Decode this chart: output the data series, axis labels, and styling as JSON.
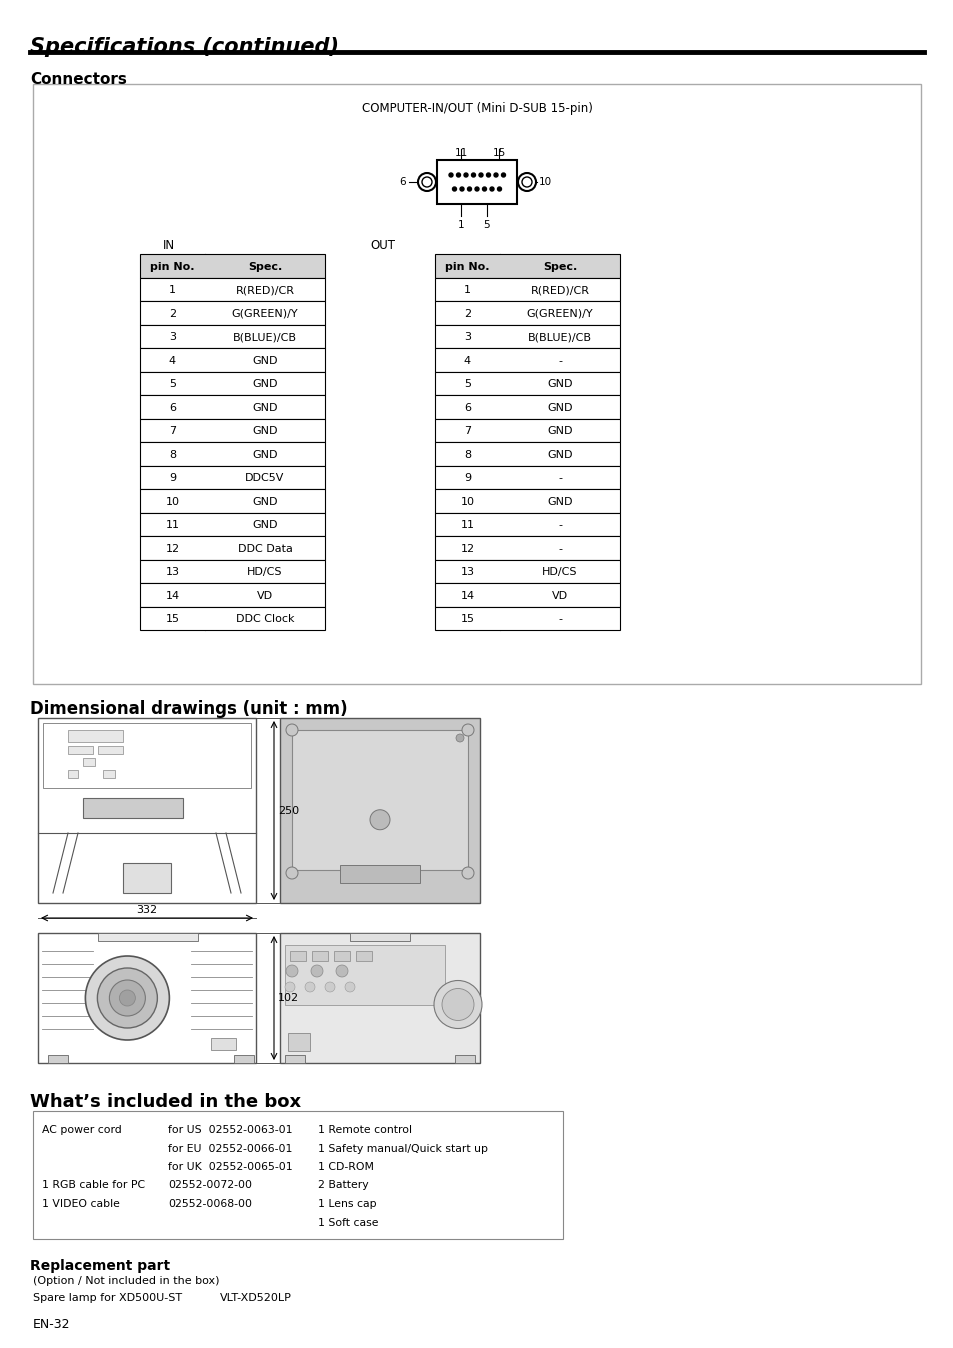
{
  "title": "Specifications (continued)",
  "connectors_title": "Connectors",
  "connector_label": "COMPUTER-IN/OUT (Mini D-SUB 15-pin)",
  "in_label": "IN",
  "out_label": "OUT",
  "in_table": {
    "headers": [
      "pin No.",
      "Spec."
    ],
    "rows": [
      [
        "1",
        "R(RED)/CR"
      ],
      [
        "2",
        "G(GREEN)/Y"
      ],
      [
        "3",
        "B(BLUE)/CB"
      ],
      [
        "4",
        "GND"
      ],
      [
        "5",
        "GND"
      ],
      [
        "6",
        "GND"
      ],
      [
        "7",
        "GND"
      ],
      [
        "8",
        "GND"
      ],
      [
        "9",
        "DDC5V"
      ],
      [
        "10",
        "GND"
      ],
      [
        "11",
        "GND"
      ],
      [
        "12",
        "DDC Data"
      ],
      [
        "13",
        "HD/CS"
      ],
      [
        "14",
        "VD"
      ],
      [
        "15",
        "DDC Clock"
      ]
    ]
  },
  "out_table": {
    "headers": [
      "pin No.",
      "Spec."
    ],
    "rows": [
      [
        "1",
        "R(RED)/CR"
      ],
      [
        "2",
        "G(GREEN)/Y"
      ],
      [
        "3",
        "B(BLUE)/CB"
      ],
      [
        "4",
        "-"
      ],
      [
        "5",
        "GND"
      ],
      [
        "6",
        "GND"
      ],
      [
        "7",
        "GND"
      ],
      [
        "8",
        "GND"
      ],
      [
        "9",
        "-"
      ],
      [
        "10",
        "GND"
      ],
      [
        "11",
        "-"
      ],
      [
        "12",
        "-"
      ],
      [
        "13",
        "HD/CS"
      ],
      [
        "14",
        "VD"
      ],
      [
        "15",
        "-"
      ]
    ]
  },
  "dimensional_title": "Dimensional drawings (unit : mm)",
  "dim_250": "250",
  "dim_332": "332",
  "dim_102": "102",
  "whats_included_title": "What’s included in the box",
  "included_lines": [
    [
      "AC power cord",
      "for US  02552-0063-01",
      "1 Remote control"
    ],
    [
      "",
      "for EU  02552-0066-01",
      "1 Safety manual/Quick start up"
    ],
    [
      "",
      "for UK  02552-0065-01",
      "1 CD-ROM"
    ],
    [
      "1 RGB cable for PC",
      "02552-0072-00",
      "2 Battery"
    ],
    [
      "1 VIDEO cable",
      "02552-0068-00",
      "1 Lens cap"
    ],
    [
      "",
      "",
      "1 Soft case"
    ]
  ],
  "replacement_title": "Replacement part",
  "replacement_note": "(Option / Not included in the box)",
  "replacement_item": "Spare lamp for XD500U-ST",
  "replacement_part": "VLT-XD520LP",
  "page_label": "EN-32",
  "bg_color": "#ffffff"
}
